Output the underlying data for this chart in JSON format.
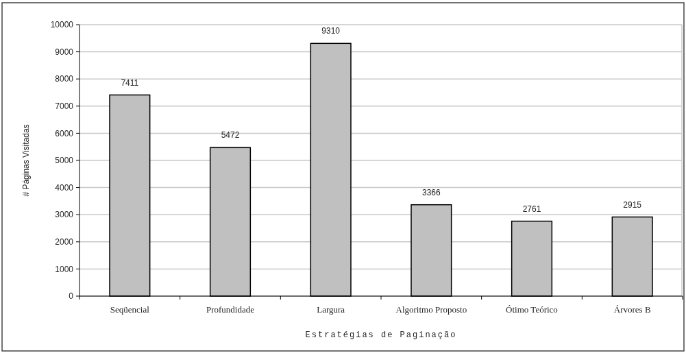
{
  "chart_data": {
    "type": "bar",
    "xlabel": "Estratégias de Paginação",
    "ylabel": "# Páginas Visitadas",
    "categories": [
      "Seqüencial",
      "Profundidade",
      "Largura",
      "Algoritmo Proposto",
      "Ótimo Teórico",
      "Árvores B"
    ],
    "values": [
      7411,
      5472,
      9310,
      3366,
      2761,
      2915
    ],
    "color": "#c0c0c0",
    "ylim": [
      0,
      10000
    ],
    "yticks": [
      0,
      1000,
      2000,
      3000,
      4000,
      5000,
      6000,
      7000,
      8000,
      9000,
      10000
    ],
    "grid": "y",
    "data_labels": true
  }
}
